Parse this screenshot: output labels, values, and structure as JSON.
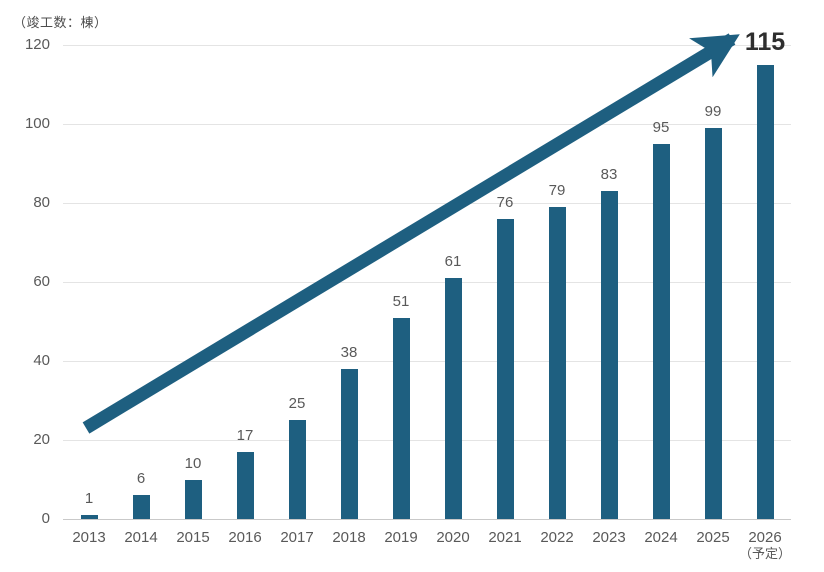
{
  "chart_data": {
    "type": "bar",
    "title": "（竣工数：棟）",
    "categories": [
      {
        "label": "2013"
      },
      {
        "label": "2014"
      },
      {
        "label": "2015"
      },
      {
        "label": "2016"
      },
      {
        "label": "2017"
      },
      {
        "label": "2018"
      },
      {
        "label": "2019"
      },
      {
        "label": "2020"
      },
      {
        "label": "2021"
      },
      {
        "label": "2022"
      },
      {
        "label": "2023"
      },
      {
        "label": "2024"
      },
      {
        "label": "2025"
      },
      {
        "label": "2026",
        "sublabel": "（予定）"
      }
    ],
    "values": [
      1,
      6,
      10,
      17,
      25,
      38,
      51,
      61,
      76,
      79,
      83,
      95,
      99,
      115
    ],
    "xlabel": "",
    "ylabel": "",
    "ylim": [
      0,
      120
    ],
    "ytick_step": 20,
    "yticks": [
      0,
      20,
      40,
      60,
      80,
      100,
      120
    ],
    "grid": true,
    "legend": "none",
    "emphasized_last_value": true,
    "annotations": [
      {
        "type": "growth-arrow",
        "from_value_area": "2013 near baseline",
        "to_value_area": "2026 top"
      }
    ],
    "colors": {
      "bar": "#1e5f80",
      "arrow": "#1e5f80",
      "gridline": "#e4e4e4",
      "axis_line": "#c9c9c9",
      "value_label": "#595959",
      "emphasized_label": "#2e2e2e",
      "tick_label": "#595959"
    }
  }
}
